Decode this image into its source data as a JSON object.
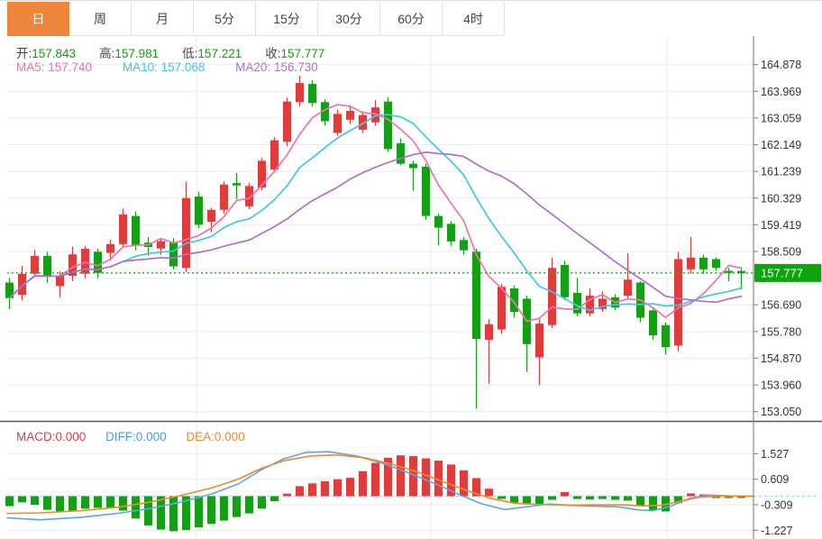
{
  "tabs": {
    "items": [
      {
        "name": "tab-day",
        "label": "日",
        "active": true
      },
      {
        "name": "tab-week",
        "label": "周",
        "active": false
      },
      {
        "name": "tab-month",
        "label": "月",
        "active": false
      },
      {
        "name": "tab-5min",
        "label": "5分",
        "active": false
      },
      {
        "name": "tab-15min",
        "label": "15分",
        "active": false
      },
      {
        "name": "tab-30min",
        "label": "30分",
        "active": false
      },
      {
        "name": "tab-60min",
        "label": "60分",
        "active": false
      },
      {
        "name": "tab-4hour",
        "label": "4时",
        "active": false
      }
    ]
  },
  "ohlc_legend": {
    "open_label": "开:",
    "open_value": "157.843",
    "high_label": "高:",
    "high_value": "157.981",
    "low_label": "低:",
    "low_value": "157.221",
    "close_label": "收:",
    "close_value": "157.777"
  },
  "ma_legend": {
    "ma5": "MA5: 157.740",
    "ma10": "MA10: 157.068",
    "ma20": "MA20: 156.730"
  },
  "macd_legend": {
    "macd": "MACD:0.000",
    "diff": "DIFF:0.000",
    "dea": "DEA:0.000"
  },
  "current_price": {
    "label": "157.777",
    "value": 157.777
  },
  "colors": {
    "up": "#e03c3c",
    "down": "#14a014",
    "ma5": "#f173a8",
    "ma10": "#3fc8e8",
    "ma20": "#b06fc8",
    "diff": "#5aa7e8",
    "dea": "#f5872a",
    "grid": "#e6edf6",
    "axis": "#8a8a8a",
    "tick_text": "#333333",
    "dotted_price_line": "#1fa51f",
    "price_label_bg": "#0da50d",
    "divider": "#555555",
    "zero_dash": "#a8cfe8",
    "tab_active_bg": "#f0853c"
  },
  "chart_data": {
    "type": "candlestick+macd",
    "main": {
      "title": "",
      "ohlc_current": {
        "open": 157.843,
        "high": 157.981,
        "low": 157.221,
        "close": 157.777
      },
      "ma_values": {
        "MA5": 157.74,
        "MA10": 157.068,
        "MA20": 156.73
      },
      "ma_periods": [
        5,
        10,
        20
      ],
      "y_ticks": [
        "164.878",
        "163.969",
        "163.059",
        "162.149",
        "161.239",
        "160.329",
        "159.419",
        "158.509",
        "157.599",
        "156.690",
        "155.780",
        "154.870",
        "153.960",
        "153.050"
      ],
      "ylim": [
        153.05,
        164.878
      ],
      "current_price": 157.777,
      "candles_ohlc": [
        [
          157.45,
          157.6,
          156.55,
          156.92
        ],
        [
          157.03,
          158.02,
          156.84,
          157.75
        ],
        [
          157.75,
          158.56,
          157.65,
          158.36
        ],
        [
          158.36,
          158.5,
          157.45,
          157.65
        ],
        [
          157.33,
          157.84,
          156.95,
          157.68
        ],
        [
          157.68,
          158.67,
          157.5,
          158.41
        ],
        [
          157.75,
          158.7,
          157.6,
          158.6
        ],
        [
          158.5,
          158.6,
          157.6,
          157.78
        ],
        [
          158.46,
          158.91,
          158.2,
          158.76
        ],
        [
          158.76,
          159.97,
          158.66,
          159.77
        ],
        [
          159.72,
          159.87,
          158.56,
          158.71
        ],
        [
          158.81,
          159.0,
          158.36,
          158.66
        ],
        [
          158.61,
          158.96,
          158.4,
          158.86
        ],
        [
          158.81,
          158.96,
          157.9,
          158.0
        ],
        [
          157.95,
          160.89,
          157.8,
          160.33
        ],
        [
          160.38,
          160.55,
          159.3,
          159.42
        ],
        [
          159.52,
          160.0,
          159.17,
          159.93
        ],
        [
          159.93,
          160.9,
          159.8,
          160.79
        ],
        [
          160.84,
          161.19,
          160.3,
          160.76
        ],
        [
          160.05,
          160.85,
          159.95,
          160.74
        ],
        [
          160.69,
          161.7,
          160.6,
          161.6
        ],
        [
          161.3,
          162.4,
          161.2,
          162.3
        ],
        [
          162.25,
          163.75,
          162.1,
          163.62
        ],
        [
          163.6,
          164.5,
          163.45,
          164.25
        ],
        [
          164.22,
          164.35,
          163.45,
          163.57
        ],
        [
          163.6,
          163.7,
          162.8,
          162.95
        ],
        [
          162.55,
          163.35,
          162.45,
          163.2
        ],
        [
          163.0,
          163.5,
          162.85,
          163.3
        ],
        [
          162.66,
          163.3,
          162.55,
          163.16
        ],
        [
          162.91,
          163.67,
          162.8,
          163.42
        ],
        [
          163.62,
          163.77,
          161.9,
          162.0
        ],
        [
          162.2,
          162.35,
          161.45,
          161.5
        ],
        [
          161.5,
          161.6,
          160.58,
          161.35
        ],
        [
          161.4,
          161.5,
          159.6,
          159.72
        ],
        [
          159.72,
          159.8,
          158.71,
          159.32
        ],
        [
          159.45,
          159.55,
          158.7,
          158.85
        ],
        [
          158.9,
          159.0,
          158.4,
          158.55
        ],
        [
          158.5,
          158.6,
          153.15,
          155.53
        ],
        [
          155.5,
          156.2,
          154.0,
          156.03
        ],
        [
          155.85,
          157.4,
          155.7,
          157.3
        ],
        [
          157.25,
          157.35,
          156.25,
          156.45
        ],
        [
          156.9,
          157.0,
          154.4,
          155.35
        ],
        [
          154.9,
          156.2,
          153.95,
          156.05
        ],
        [
          156.0,
          158.3,
          155.9,
          157.95
        ],
        [
          158.05,
          158.2,
          156.85,
          156.95
        ],
        [
          157.1,
          157.6,
          156.3,
          156.4
        ],
        [
          156.4,
          157.25,
          156.3,
          157.0
        ],
        [
          156.55,
          157.15,
          156.45,
          156.9
        ],
        [
          156.95,
          157.05,
          156.5,
          156.6
        ],
        [
          157.0,
          158.45,
          156.9,
          157.55
        ],
        [
          157.45,
          157.5,
          156.1,
          156.25
        ],
        [
          156.5,
          156.6,
          155.5,
          155.65
        ],
        [
          156.0,
          156.1,
          155.0,
          155.25
        ],
        [
          155.3,
          158.5,
          155.1,
          158.25
        ],
        [
          157.9,
          159.0,
          157.75,
          158.3
        ],
        [
          158.3,
          158.4,
          157.75,
          157.9
        ],
        [
          158.25,
          158.3,
          157.85,
          157.95
        ],
        [
          157.85,
          157.95,
          157.5,
          157.78
        ],
        [
          157.843,
          157.981,
          157.221,
          157.777
        ]
      ]
    },
    "macd": {
      "y_ticks": [
        "1.527",
        "0.609",
        "-0.309",
        "-1.227"
      ],
      "histogram": [
        -0.36,
        -0.22,
        -0.31,
        -0.49,
        -0.56,
        -0.53,
        -0.45,
        -0.42,
        -0.44,
        -0.52,
        -0.8,
        -1.05,
        -1.2,
        -1.26,
        -1.22,
        -1.12,
        -1.0,
        -0.88,
        -0.75,
        -0.62,
        -0.45,
        -0.18,
        0.09,
        0.36,
        0.46,
        0.54,
        0.61,
        0.66,
        0.9,
        1.2,
        1.38,
        1.47,
        1.44,
        1.36,
        1.28,
        1.14,
        0.93,
        0.65,
        0.27,
        -0.1,
        -0.24,
        -0.3,
        -0.28,
        -0.13,
        0.15,
        -0.1,
        -0.12,
        -0.1,
        -0.13,
        -0.16,
        -0.35,
        -0.5,
        -0.55,
        -0.25,
        0.1,
        0.05,
        -0.04,
        -0.05,
        -0.06
      ],
      "diff_line": [
        [
          8,
          -0.78
        ],
        [
          45,
          -0.85
        ],
        [
          90,
          -0.76
        ],
        [
          130,
          -0.62
        ],
        [
          165,
          -0.45
        ],
        [
          200,
          -0.22
        ],
        [
          235,
          0.08
        ],
        [
          265,
          0.45
        ],
        [
          290,
          0.95
        ],
        [
          315,
          1.35
        ],
        [
          340,
          1.58
        ],
        [
          365,
          1.6
        ],
        [
          395,
          1.45
        ],
        [
          425,
          1.18
        ],
        [
          455,
          0.82
        ],
        [
          485,
          0.42
        ],
        [
          510,
          0.05
        ],
        [
          535,
          -0.28
        ],
        [
          560,
          -0.48
        ],
        [
          585,
          -0.38
        ],
        [
          610,
          -0.28
        ],
        [
          635,
          -0.33
        ],
        [
          660,
          -0.36
        ],
        [
          685,
          -0.38
        ],
        [
          710,
          -0.5
        ],
        [
          725,
          -0.52
        ],
        [
          745,
          -0.35
        ],
        [
          765,
          -0.08
        ],
        [
          785,
          0.04
        ],
        [
          810,
          0.01
        ],
        [
          836,
          0.0
        ]
      ],
      "dea_line": [
        [
          8,
          -0.62
        ],
        [
          45,
          -0.6
        ],
        [
          90,
          -0.52
        ],
        [
          130,
          -0.4
        ],
        [
          165,
          -0.22
        ],
        [
          200,
          0.02
        ],
        [
          235,
          0.3
        ],
        [
          265,
          0.62
        ],
        [
          290,
          1.0
        ],
        [
          315,
          1.28
        ],
        [
          345,
          1.45
        ],
        [
          375,
          1.48
        ],
        [
          405,
          1.38
        ],
        [
          435,
          1.15
        ],
        [
          465,
          0.85
        ],
        [
          495,
          0.48
        ],
        [
          520,
          0.18
        ],
        [
          545,
          -0.08
        ],
        [
          570,
          -0.25
        ],
        [
          600,
          -0.3
        ],
        [
          630,
          -0.32
        ],
        [
          660,
          -0.31
        ],
        [
          690,
          -0.31
        ],
        [
          715,
          -0.35
        ],
        [
          735,
          -0.32
        ],
        [
          755,
          -0.18
        ],
        [
          775,
          -0.04
        ],
        [
          800,
          0.0
        ],
        [
          836,
          0.0
        ]
      ]
    }
  }
}
